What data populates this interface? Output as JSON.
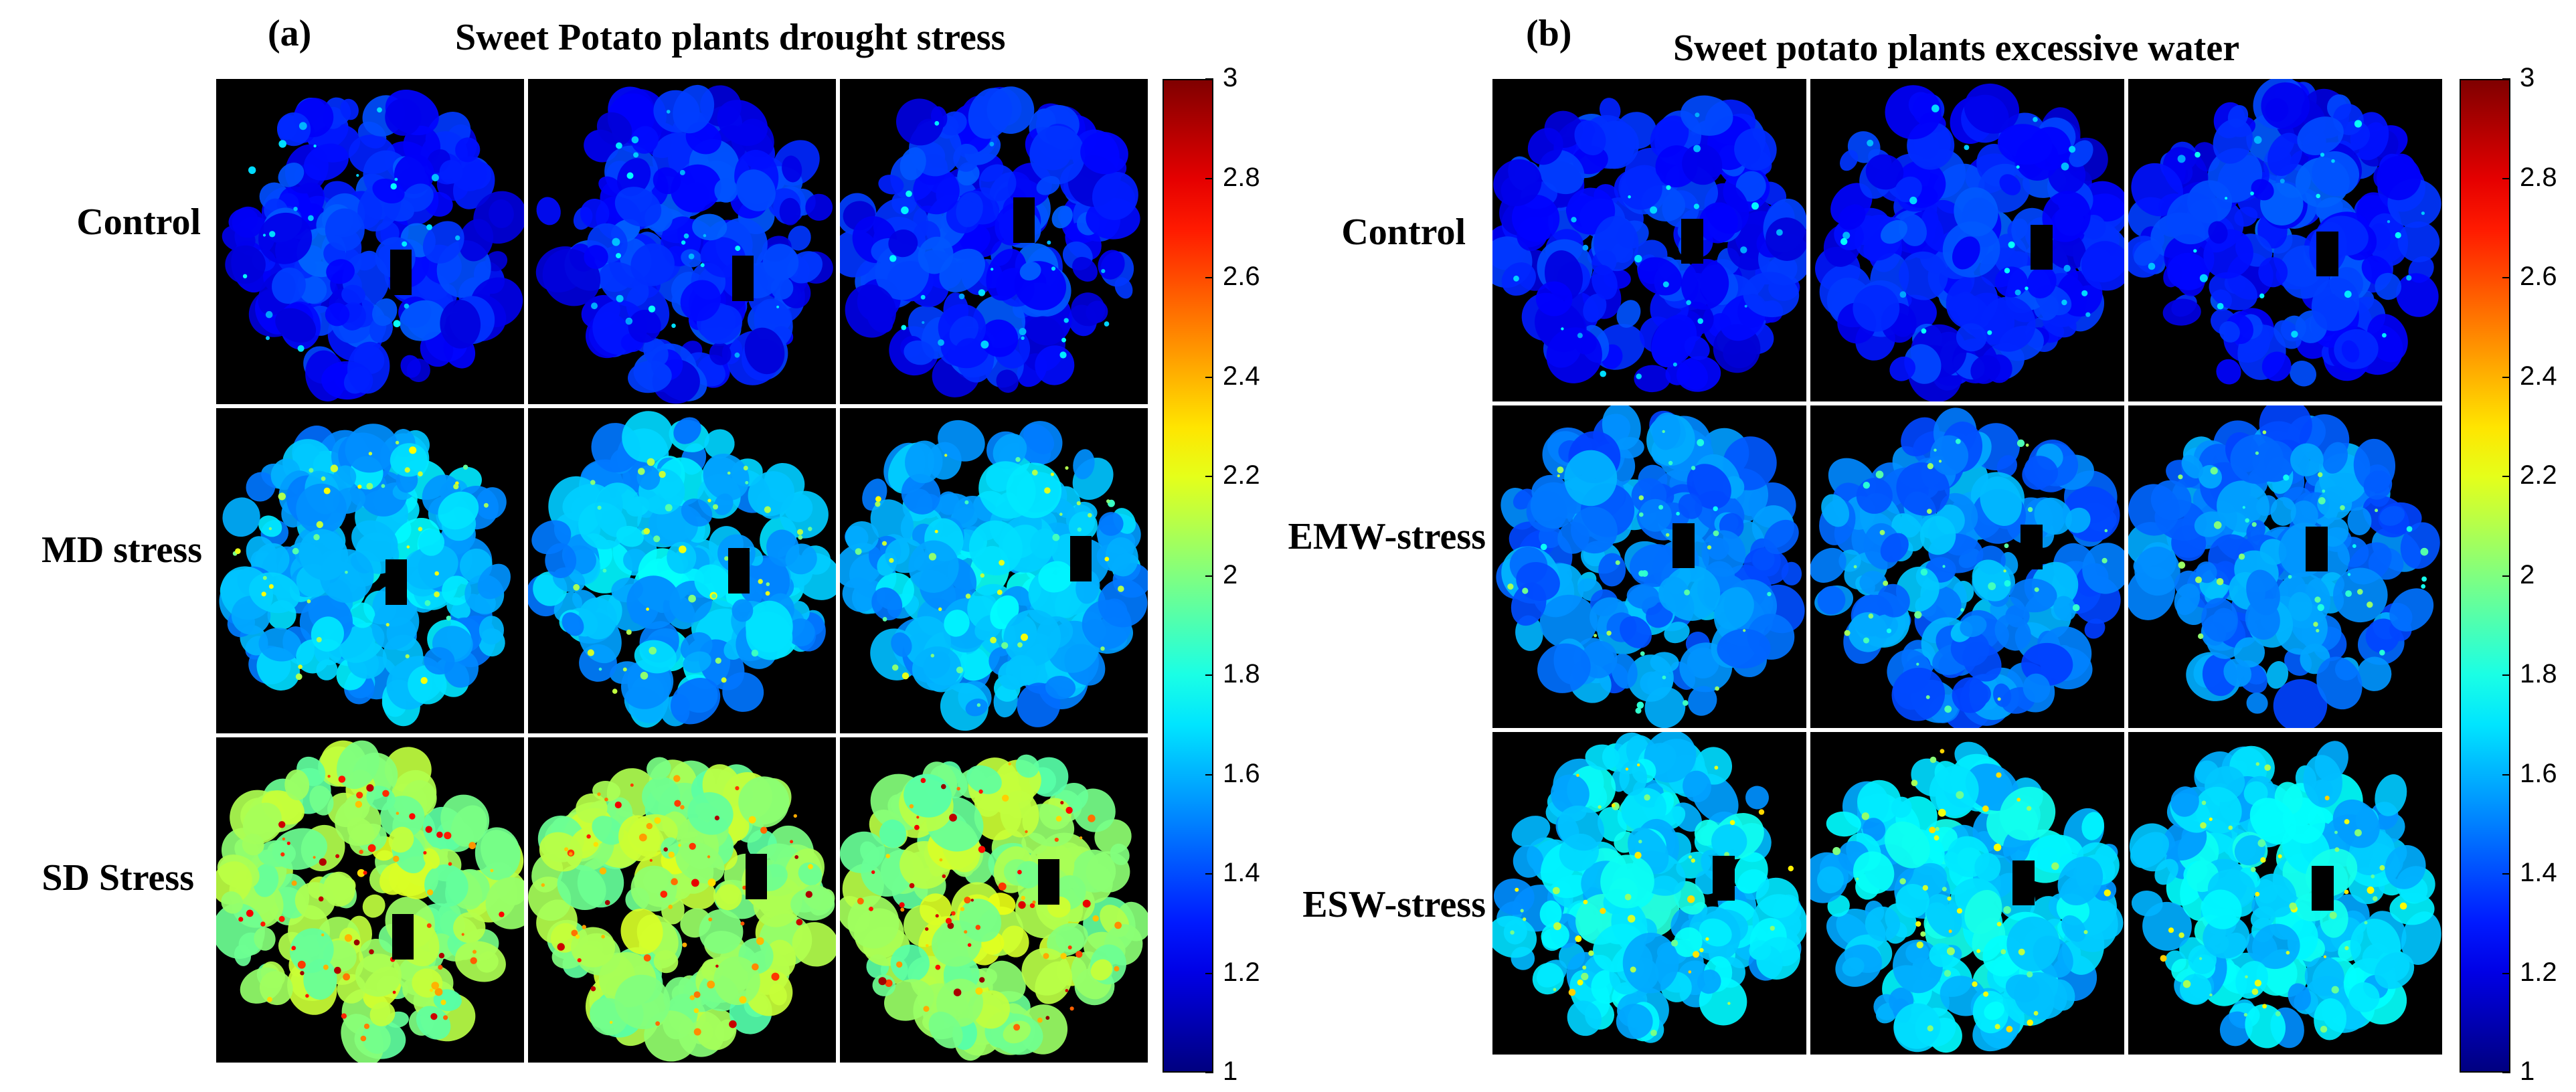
{
  "panel_a": {
    "letter": "(a)",
    "title": "Sweet Potato plants drought stress",
    "rows": [
      {
        "label": "Control",
        "level": 0.18
      },
      {
        "label": "MD stress",
        "level": 0.33
      },
      {
        "label": "SD Stress",
        "level": 0.55
      }
    ],
    "colorbar": {
      "min": 1,
      "max": 3,
      "ticks": [
        "1",
        "1.2",
        "1.4",
        "1.6",
        "1.8",
        "2",
        "2.2",
        "2.4",
        "2.6",
        "2.8",
        "3"
      ]
    }
  },
  "panel_b": {
    "letter": "(b)",
    "title": "Sweet potato plants excessive water",
    "rows": [
      {
        "label": "Control",
        "level": 0.18
      },
      {
        "label": "EMW-stress",
        "level": 0.28
      },
      {
        "label": "ESW-stress",
        "level": 0.36
      }
    ],
    "colorbar": {
      "min": 1,
      "max": 3,
      "ticks": [
        "1",
        "1.2",
        "1.4",
        "1.6",
        "1.8",
        "2",
        "2.2",
        "2.4",
        "2.6",
        "2.8",
        "3"
      ]
    }
  },
  "colors": {
    "colormap": "jet",
    "background": "#000000",
    "frame": "#ffffff"
  }
}
